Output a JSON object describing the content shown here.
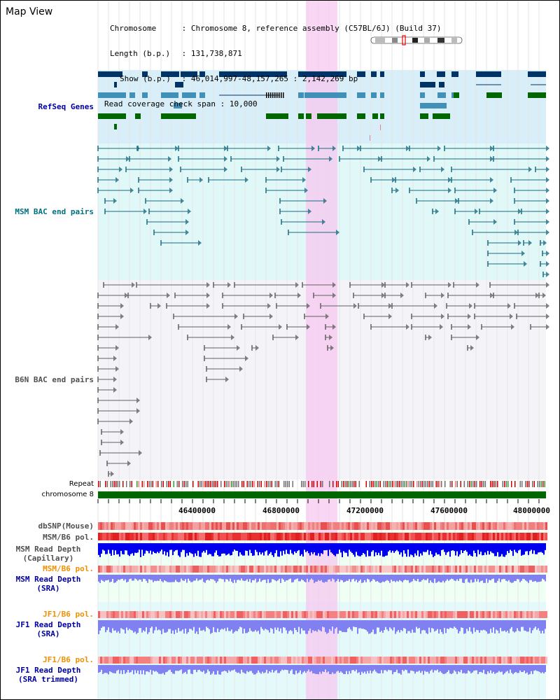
{
  "view_title": "Map View",
  "info": {
    "chromosome_label": "Chromosome",
    "chromosome_value": "Chromosome 8, reference assembly (C57BL/6J) (Build 37)",
    "length_label": "Length (b.p.)",
    "length_value": "131,738,871",
    "show_label": "Show (b.p.)",
    "show_value": "46,014,997-48,157,265 : 2,142,269 bp",
    "coverage_label": "Read coverage check span",
    "coverage_value": "10,000"
  },
  "tracks": {
    "refseq": "RefSeq Genes",
    "msm_bac": "MSM BAC end pairs",
    "b6n_bac": "B6N BAC end pairs",
    "repeat": "Repeat",
    "chromosome": "chromosome 8",
    "dbsnp": "dbSNP(Mouse)",
    "msm_b6_pol_1": "MSM/B6 pol.",
    "msm_depth_cap_1": "MSM Read Depth",
    "msm_depth_cap_2": "(Capillary)",
    "msm_b6_pol_2": "MSM/B6 pol.",
    "msm_depth_sra_1": "MSM Read Depth",
    "msm_depth_sra_2": "(SRA)",
    "jf1_b6_pol_1": "JF1/B6 pol.",
    "jf1_depth_sra_1": "JF1 Read Depth",
    "jf1_depth_sra_2": "(SRA)",
    "jf1_b6_pol_2": "JF1/B6 pol.",
    "jf1_depth_trim_1": "JF1 Read Depth",
    "jf1_depth_trim_2": "(SRA trimmed)"
  },
  "axis_ticks": [
    "46400000",
    "46800000",
    "47200000",
    "47600000",
    "48000000"
  ],
  "colors": {
    "highlight": "#f7c8f0",
    "refseq_bg": "#d8eef8",
    "bac_bg": "#e0f8f8",
    "gene_navy": "#003366",
    "gene_blue": "#4090b8",
    "gene_green": "#006600",
    "chromosome_bar": "#006600",
    "msm_line": "#1a6a80",
    "b6n_line": "#606060",
    "depth_blue": "#0000ee",
    "depth_light": "#8080f0"
  }
}
